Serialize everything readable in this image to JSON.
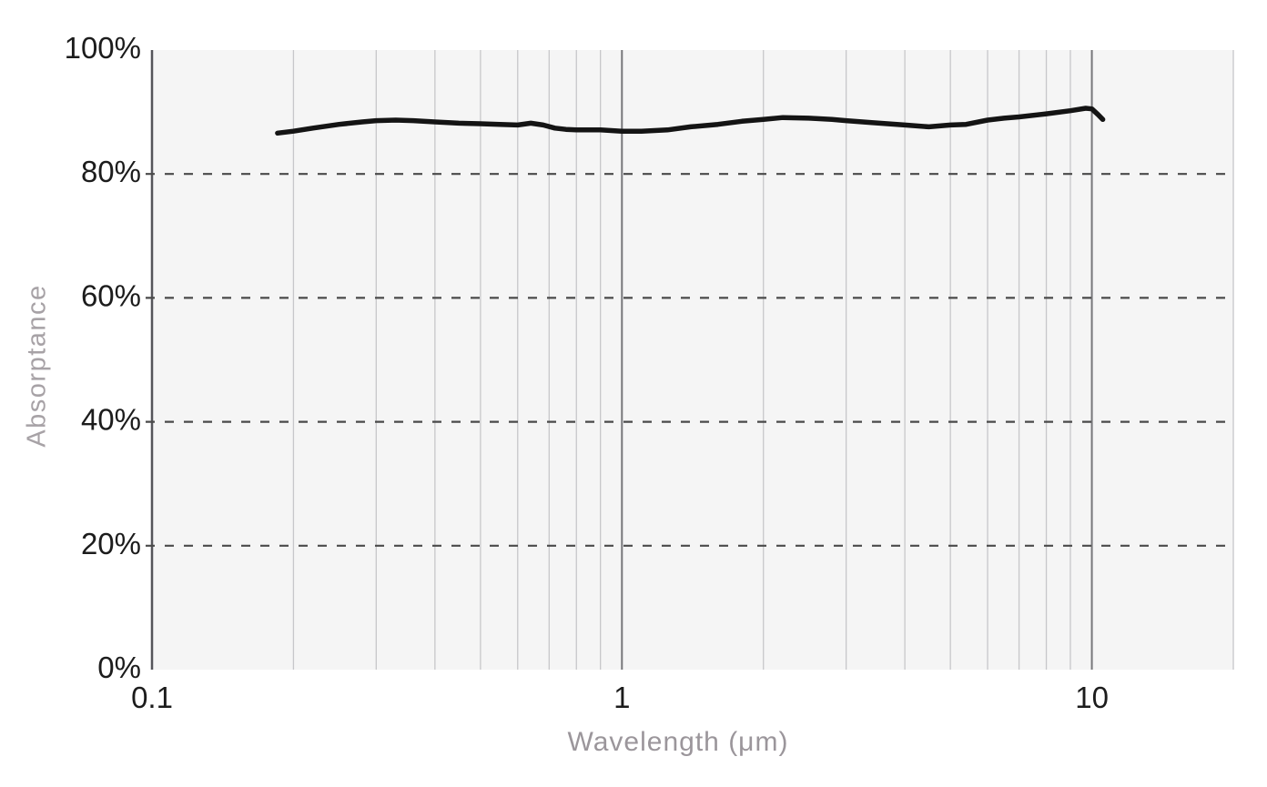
{
  "chart_data": {
    "type": "line",
    "title": "",
    "xlabel": "Wavelength (μm)",
    "ylabel": "Absorptance",
    "x_scale": "log",
    "xlim": [
      0.1,
      20
    ],
    "ylim": [
      0,
      100
    ],
    "grid": true,
    "legend_position": "none",
    "x_ticks": [
      {
        "value": 0.1,
        "label": "0.1"
      },
      {
        "value": 1,
        "label": "1"
      },
      {
        "value": 10,
        "label": "10"
      }
    ],
    "y_ticks": [
      {
        "value": 0,
        "label": "0%"
      },
      {
        "value": 20,
        "label": "20%"
      },
      {
        "value": 40,
        "label": "40%"
      },
      {
        "value": 60,
        "label": "60%"
      },
      {
        "value": 80,
        "label": "80%"
      },
      {
        "value": 100,
        "label": "100%"
      }
    ],
    "x_minor_gridlines": [
      0.2,
      0.3,
      0.4,
      0.5,
      0.6,
      0.7,
      0.8,
      0.9,
      2,
      3,
      4,
      5,
      6,
      7,
      8,
      9,
      20
    ],
    "x_major_gridlines": [
      1,
      10
    ],
    "y_dashed_gridlines": [
      20,
      40,
      60,
      80
    ],
    "series": [
      {
        "name": "Absorptance",
        "units": "percent",
        "points": [
          [
            0.185,
            86.6
          ],
          [
            0.2,
            86.9
          ],
          [
            0.22,
            87.4
          ],
          [
            0.25,
            88.0
          ],
          [
            0.28,
            88.4
          ],
          [
            0.3,
            88.6
          ],
          [
            0.33,
            88.7
          ],
          [
            0.36,
            88.6
          ],
          [
            0.4,
            88.4
          ],
          [
            0.45,
            88.2
          ],
          [
            0.5,
            88.1
          ],
          [
            0.55,
            88.0
          ],
          [
            0.6,
            87.9
          ],
          [
            0.64,
            88.2
          ],
          [
            0.68,
            87.9
          ],
          [
            0.72,
            87.4
          ],
          [
            0.76,
            87.2
          ],
          [
            0.8,
            87.1
          ],
          [
            0.9,
            87.1
          ],
          [
            1.0,
            86.9
          ],
          [
            1.1,
            86.9
          ],
          [
            1.25,
            87.1
          ],
          [
            1.4,
            87.6
          ],
          [
            1.6,
            88.0
          ],
          [
            1.8,
            88.5
          ],
          [
            2.0,
            88.8
          ],
          [
            2.2,
            89.1
          ],
          [
            2.5,
            89.0
          ],
          [
            2.8,
            88.8
          ],
          [
            3.0,
            88.6
          ],
          [
            3.4,
            88.3
          ],
          [
            4.0,
            87.9
          ],
          [
            4.5,
            87.6
          ],
          [
            5.0,
            87.9
          ],
          [
            5.4,
            88.0
          ],
          [
            6.0,
            88.7
          ],
          [
            6.5,
            89.0
          ],
          [
            7.0,
            89.2
          ],
          [
            8.0,
            89.7
          ],
          [
            9.0,
            90.2
          ],
          [
            9.7,
            90.6
          ],
          [
            10.0,
            90.5
          ],
          [
            10.3,
            89.6
          ],
          [
            10.55,
            88.8
          ]
        ]
      }
    ],
    "colors": {
      "line": "#141414",
      "plot_background": "#f5f5f5",
      "minor_gridline": "#c7c7ca",
      "major_gridline": "#77777a",
      "axis_line": "#55555a",
      "dashed_gridline": "#4a4a4a",
      "tick_label": "#1c1c1c",
      "y_axis_title": "#a7a2a6",
      "x_axis_title": "#9b969b"
    }
  }
}
